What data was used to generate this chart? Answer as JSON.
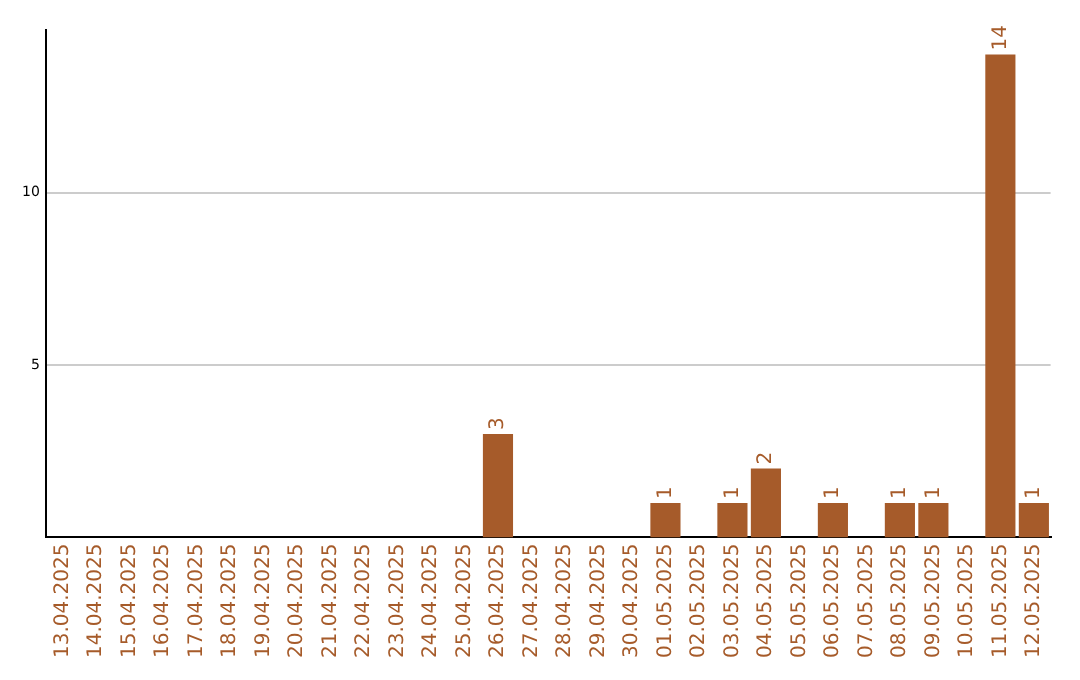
{
  "chart_data": {
    "type": "bar",
    "categories": [
      "13.04.2025",
      "14.04.2025",
      "15.04.2025",
      "16.04.2025",
      "17.04.2025",
      "18.04.2025",
      "19.04.2025",
      "20.04.2025",
      "21.04.2025",
      "22.04.2025",
      "23.04.2025",
      "24.04.2025",
      "25.04.2025",
      "26.04.2025",
      "27.04.2025",
      "28.04.2025",
      "29.04.2025",
      "30.04.2025",
      "01.05.2025",
      "02.05.2025",
      "03.05.2025",
      "04.05.2025",
      "05.05.2025",
      "06.05.2025",
      "07.05.2025",
      "08.05.2025",
      "09.05.2025",
      "10.05.2025",
      "11.05.2025",
      "12.05.2025"
    ],
    "values": [
      0,
      0,
      0,
      0,
      0,
      0,
      0,
      0,
      0,
      0,
      0,
      0,
      0,
      3,
      0,
      0,
      0,
      0,
      1,
      0,
      1,
      2,
      0,
      1,
      0,
      1,
      1,
      0,
      14,
      1
    ],
    "value_labels": [
      null,
      null,
      null,
      null,
      null,
      null,
      null,
      null,
      null,
      null,
      null,
      null,
      null,
      "3",
      null,
      null,
      null,
      null,
      "1",
      null,
      "1",
      "2",
      null,
      "1",
      null,
      "1",
      "1",
      null,
      "14",
      "1"
    ],
    "color": "#a65b2a",
    "ylim": [
      0,
      14.7
    ],
    "yticks": [
      5,
      10
    ],
    "grid": "y",
    "legend": false
  }
}
